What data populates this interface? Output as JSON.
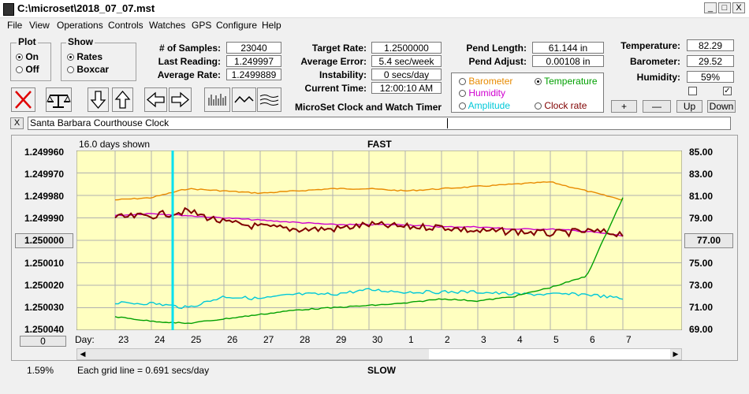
{
  "window": {
    "title": "C:\\microset\\2018_07_07.mst",
    "min": "_",
    "max": "□",
    "close": "X"
  },
  "menu": [
    "File",
    "View",
    "Operations",
    "Controls",
    "Watches",
    "GPS",
    "Configure",
    "Help"
  ],
  "plot_group": {
    "title": "Plot",
    "on": "On",
    "off": "Off",
    "selected": "On"
  },
  "show_group": {
    "title": "Show",
    "rates": "Rates",
    "boxcar": "Boxcar",
    "selected": "Rates"
  },
  "stats": {
    "samples_label": "# of Samples:",
    "samples": "23040",
    "last_label": "Last Reading:",
    "last": "1.249997",
    "avg_label": "Average Rate:",
    "avg": "1.2499889"
  },
  "rates": {
    "target_label": "Target Rate:",
    "target": "1.2500000",
    "error_label": "Average Error:",
    "error": "5.4 sec/week",
    "instab_label": "Instability:",
    "instab": "0 secs/day",
    "time_label": "Current Time:",
    "time": "12:00:10 AM"
  },
  "pend": {
    "length_label": "Pend Length:",
    "length": "61.144 in",
    "adjust_label": "Pend Adjust:",
    "adjust": "0.00108 in"
  },
  "env": {
    "temp_label": "Temperature:",
    "temp": "82.29",
    "baro_label": "Barometer:",
    "baro": "29.52",
    "hum_label": "Humidity:",
    "hum": "59%"
  },
  "overlay": {
    "barometer": "Barometer",
    "temperature": "Temperature",
    "humidity": "Humidity",
    "amplitude": "Amplitude",
    "clock_rate": "Clock rate",
    "selected": "Temperature",
    "colors": {
      "barometer": "#e88a00",
      "temperature": "#00a000",
      "humidity": "#d000d0",
      "amplitude": "#00c8d8",
      "clock_rate": "#800000"
    }
  },
  "env_buttons": {
    "plus": "+",
    "minus": "—",
    "up": "Up",
    "down": "Down"
  },
  "app_label": "MicroSet Clock and Watch Timer",
  "clock_name": "Santa Barbara Courthouse Clock",
  "clear_label": "X",
  "chart": {
    "days_shown": "16.0 days shown",
    "fast": "FAST",
    "slow": "SLOW",
    "grid_note": "Each grid line = 0.691 secs/day",
    "percent": "1.59%",
    "left_input": "1.250000",
    "right_input": "77.00",
    "bottom_input": "0",
    "day_label": "Day:",
    "left_ticks": [
      "1.249960",
      "1.249970",
      "1.249980",
      "1.249990",
      "1.250000",
      "1.250010",
      "1.250020",
      "1.250030",
      "1.250040"
    ],
    "right_ticks": [
      "85.00",
      "83.00",
      "81.00",
      "79.00",
      "77.00",
      "75.00",
      "73.00",
      "71.00",
      "69.00"
    ],
    "days": [
      "23",
      "24",
      "25",
      "26",
      "27",
      "28",
      "29",
      "30",
      "1",
      "2",
      "3",
      "4",
      "5",
      "6",
      "7"
    ]
  },
  "chart_data": {
    "type": "line",
    "x": [
      "23",
      "24",
      "25",
      "26",
      "27",
      "28",
      "29",
      "30",
      "1",
      "2",
      "3",
      "4",
      "5",
      "6",
      "7"
    ],
    "ylim": [
      1.25004,
      1.24996
    ],
    "y2lim": [
      69,
      85
    ],
    "series": [
      {
        "name": "Barometer",
        "color": "#e88a00",
        "values": [
          1.249982,
          1.249981,
          1.249977,
          1.249978,
          1.249979,
          1.249978,
          1.249977,
          1.249977,
          1.249978,
          1.249977,
          1.249976,
          1.249975,
          1.249974,
          1.249978,
          1.249982
        ]
      },
      {
        "name": "Humidity",
        "color": "#d000d0",
        "values": [
          1.249989,
          1.249988,
          1.249989,
          1.24999,
          1.249991,
          1.249992,
          1.249993,
          1.249993,
          1.249993,
          1.249994,
          1.249994,
          1.249995,
          1.249995,
          1.249996,
          1.249998
        ]
      },
      {
        "name": "Clock rate",
        "color": "#800000",
        "values": [
          1.24999,
          1.249989,
          1.249987,
          1.249992,
          1.249994,
          1.249995,
          1.249995,
          1.249993,
          1.249994,
          1.249994,
          1.249996,
          1.249996,
          1.249997,
          1.249996,
          1.249997
        ]
      },
      {
        "name": "Amplitude",
        "color": "#00c8d8",
        "values": [
          1.250028,
          1.250028,
          1.25003,
          1.250025,
          1.250026,
          1.250024,
          1.250024,
          1.250022,
          1.250023,
          1.250023,
          1.250023,
          1.250024,
          1.250024,
          1.250024,
          1.250026
        ]
      },
      {
        "name": "Temperature",
        "color": "#00a000",
        "values": [
          1.250034,
          1.250036,
          1.250037,
          1.250035,
          1.250033,
          1.250031,
          1.25003,
          1.250029,
          1.250028,
          1.250026,
          1.250027,
          1.250025,
          1.250021,
          1.250016,
          1.249981
        ]
      }
    ]
  }
}
